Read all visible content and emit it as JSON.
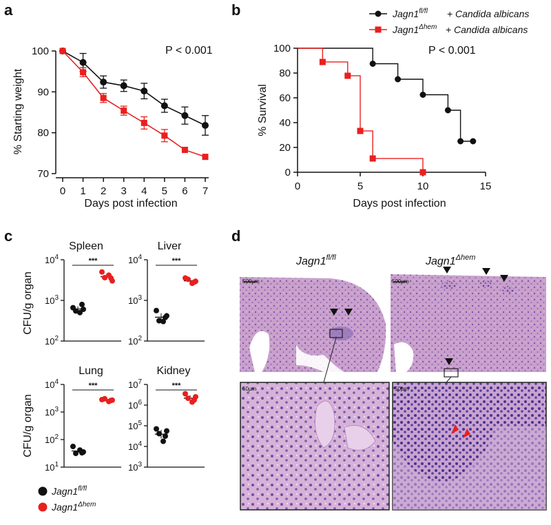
{
  "panel_labels": {
    "a": "a",
    "b": "b",
    "c": "c",
    "d": "d"
  },
  "colors": {
    "control": "#111111",
    "mutant": "#e8201f",
    "tissue": "#c79ac9",
    "tissue_dark": "#6b4fa3"
  },
  "chart_data": [
    {
      "id": "a",
      "type": "line",
      "ylabel": "% Starting weight",
      "xlabel": "Days post infection",
      "annotation": "P < 0.001",
      "x": [
        0,
        1,
        2,
        3,
        4,
        5,
        6,
        7
      ],
      "xlim": [
        0,
        7
      ],
      "ylim": [
        70,
        100
      ],
      "yticks": [
        70,
        80,
        90,
        100
      ],
      "series": [
        {
          "key": "control",
          "values": [
            100,
            97.2,
            92.4,
            91.5,
            90.2,
            86.6,
            84.2,
            81.8
          ],
          "err": [
            0,
            2.2,
            1.5,
            1.4,
            1.9,
            1.6,
            2.1,
            2.4
          ]
        },
        {
          "key": "mutant",
          "values": [
            100,
            94.8,
            88.5,
            85.4,
            82.4,
            79.3,
            75.8,
            74.1
          ],
          "err": [
            0,
            1.1,
            1.1,
            1.1,
            1.5,
            1.5,
            0,
            0
          ]
        }
      ]
    },
    {
      "id": "b",
      "type": "step",
      "ylabel": "% Survival",
      "xlabel": "Days post infection",
      "annotation": "P < 0.001",
      "xlim": [
        0,
        15
      ],
      "ylim": [
        0,
        100
      ],
      "xticks": [
        0,
        5,
        10,
        15
      ],
      "yticks": [
        0,
        20,
        40,
        60,
        80,
        100
      ],
      "legend": [
        {
          "key": "control",
          "name": "Jagn1",
          "sup": "fl/fl",
          "suffix": " + Candida albicans"
        },
        {
          "key": "mutant",
          "name": "Jagn1",
          "sup": "Δhem",
          "suffix": " + Candida albicans"
        }
      ],
      "series": [
        {
          "key": "control",
          "steps": [
            [
              0,
              100
            ],
            [
              6,
              87.5
            ],
            [
              8,
              75
            ],
            [
              10,
              62.5
            ],
            [
              12,
              50
            ],
            [
              13,
              25
            ],
            [
              14,
              25
            ]
          ],
          "marks": [
            [
              6,
              87.5
            ],
            [
              8,
              75
            ],
            [
              10,
              62.5
            ],
            [
              12,
              50
            ],
            [
              13,
              25
            ],
            [
              14,
              25
            ]
          ]
        },
        {
          "key": "mutant",
          "steps": [
            [
              0,
              100
            ],
            [
              2,
              88.9
            ],
            [
              4,
              77.8
            ],
            [
              5,
              33.3
            ],
            [
              6,
              11.1
            ],
            [
              10,
              0
            ]
          ],
          "marks": [
            [
              2,
              88.9
            ],
            [
              4,
              77.8
            ],
            [
              5,
              33.3
            ],
            [
              6,
              11.1
            ],
            [
              10,
              0
            ]
          ]
        }
      ]
    },
    {
      "id": "c",
      "type": "scatter",
      "ylabel": "CFU/g organ",
      "groups": [
        {
          "title": "Spleen",
          "scale": "log",
          "ymin": 2,
          "ymax": 4,
          "yticks": [
            4,
            3,
            2
          ],
          "stars": "***",
          "control": [
            2.82,
            2.9,
            2.74,
            2.7,
            2.78
          ],
          "mutant": [
            3.7,
            3.55,
            3.56,
            3.62,
            3.48
          ]
        },
        {
          "title": "Liver",
          "scale": "log",
          "ymin": 2,
          "ymax": 4,
          "yticks": [
            4,
            3,
            2
          ],
          "stars": "***",
          "control": [
            2.75,
            2.58,
            2.5,
            2.48,
            2.62
          ],
          "mutant": [
            3.55,
            3.45,
            3.52,
            3.42,
            3.47
          ]
        },
        {
          "title": "Lung",
          "scale": "log",
          "ymin": 1,
          "ymax": 4,
          "yticks": [
            4,
            3,
            2,
            1
          ],
          "stars": "***",
          "control": [
            1.75,
            1.52,
            1.5,
            1.62,
            1.55
          ],
          "mutant": [
            3.45,
            3.42,
            3.48,
            3.38,
            3.43
          ]
        },
        {
          "title": "Kidney",
          "scale": "log",
          "ymin": 3,
          "ymax": 7,
          "yticks": [
            7,
            6,
            5,
            4,
            3
          ],
          "stars": "***",
          "control": [
            4.85,
            4.5,
            4.62,
            4.25,
            4.75
          ],
          "mutant": [
            6.55,
            6.25,
            6.33,
            6.15,
            6.4
          ]
        }
      ],
      "legend": [
        {
          "key": "control",
          "name": "Jagn1",
          "sup": "fl/fl"
        },
        {
          "key": "mutant",
          "name": "Jagn1",
          "sup": "Δhem"
        }
      ]
    }
  ],
  "panel_d": {
    "left_title": {
      "name": "Jagn1",
      "sup": "fl/fl"
    },
    "right_title": {
      "name": "Jagn1",
      "sup": "Δhem"
    },
    "scale_top": "500µm",
    "scale_bottom": "50µm"
  }
}
